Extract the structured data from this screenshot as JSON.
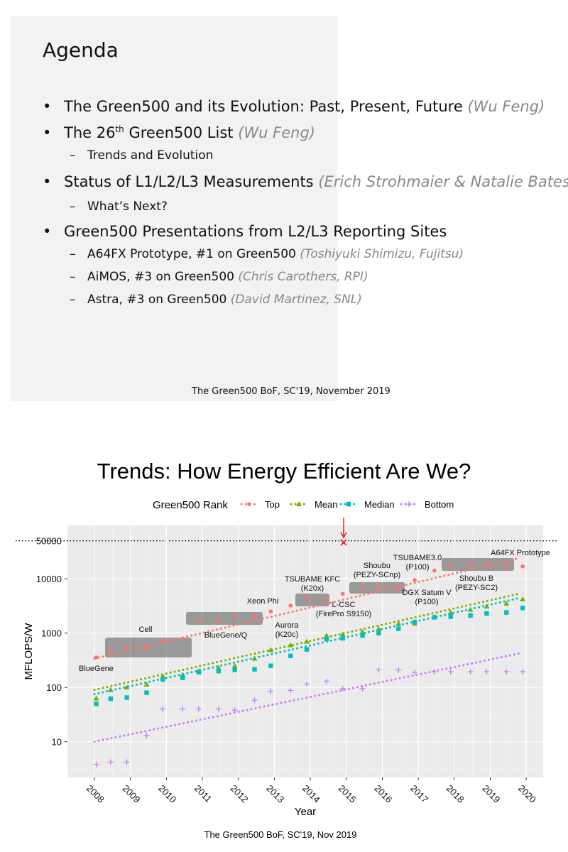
{
  "slide1": {
    "title": "Agenda",
    "items": [
      {
        "text": "The Green500 and its Evolution: Past, Present, Future",
        "note": "(Wu Feng)",
        "level": 1
      },
      {
        "text": "The 26",
        "sup": "th",
        "rest": " Green500 List",
        "note": "(Wu Feng)",
        "level": 1
      },
      {
        "text": "Trends and Evolution",
        "level": 2
      },
      {
        "text": "Status of L1/L2/L3 Measurements",
        "note": "(Erich Strohmaier & Natalie Bates)",
        "level": 1
      },
      {
        "text": "What’s Next?",
        "level": 2
      },
      {
        "text": "Green500 Presentations from L2/L3 Reporting Sites",
        "level": 1
      },
      {
        "text": "A64FX Prototype, #1 on Green500",
        "note": "(Toshiyuki Shimizu, Fujitsu)",
        "level": 2
      },
      {
        "text": "AiMOS, #3 on Green500",
        "note": "(Chris Carothers, RPI)",
        "level": 2
      },
      {
        "text": "Astra, #3 on Green500",
        "note": "(David Martinez, SNL)",
        "level": 2
      }
    ],
    "footer": "The Green500 BoF, SC'19, November 2019"
  },
  "slide2": {
    "title": "Trends:  How Energy Efficient Are We?",
    "footer": "The Green500 BoF, SC'19, Nov 2019"
  },
  "chart_data": {
    "type": "scatter",
    "legend_title": "Green500 Rank",
    "legend": "top",
    "x_label": "Year",
    "y_label": "MFLOPS/W",
    "log_y": true,
    "grid": true,
    "xlim": [
      2007.25,
      2020.47
    ],
    "ylim": [
      2.2,
      96000
    ],
    "xticks": [
      2008,
      2009,
      2010,
      2011,
      2012,
      2013,
      2014,
      2015,
      2016,
      2017,
      2018,
      2019,
      2020
    ],
    "yticks": [
      10,
      100,
      1000,
      10000,
      50000
    ],
    "x": [
      2008.05,
      2008.45,
      2008.9,
      2009.45,
      2009.9,
      2010.45,
      2010.9,
      2011.45,
      2011.9,
      2012.45,
      2012.9,
      2013.45,
      2013.9,
      2014.45,
      2014.9,
      2015.45,
      2015.9,
      2016.45,
      2016.9,
      2017.45,
      2017.9,
      2018.45,
      2018.9,
      2019.45,
      2019.9
    ],
    "series": [
      {
        "name": "Top",
        "color": "#F8766D",
        "shape": "circle",
        "values": [
          357,
          488,
          536,
          536,
          723,
          773,
          1684,
          1684,
          2097,
          2100,
          2499,
          3208,
          4503,
          4390,
          5272,
          7032,
          7032,
          6674,
          9462,
          14110,
          17009,
          18404,
          18404,
          16876,
          16876
        ],
        "trend_x": [
          2008,
          2019.8
        ],
        "trend_values": [
          340,
          24000
        ]
      },
      {
        "name": "Mean",
        "color": "#7CAE00",
        "shape": "triangle",
        "values": [
          63,
          90,
          100,
          113,
          160,
          170,
          200,
          230,
          250,
          340,
          490,
          600,
          700,
          900,
          950,
          1050,
          1200,
          1500,
          1500,
          2000,
          2400,
          2700,
          3100,
          3500,
          4200
        ],
        "trend_x": [
          2008,
          2019.8
        ],
        "trend_values": [
          90,
          5300
        ]
      },
      {
        "name": "Median",
        "color": "#00BFC4",
        "shape": "square",
        "values": [
          50,
          62,
          65,
          80,
          140,
          150,
          190,
          200,
          210,
          215,
          250,
          380,
          500,
          780,
          800,
          900,
          1000,
          1200,
          1600,
          1950,
          2000,
          2100,
          2300,
          2400,
          2900
        ],
        "trend_x": [
          2008,
          2019.8
        ],
        "trend_values": [
          75,
          4400
        ]
      },
      {
        "name": "Bottom",
        "color": "#C77CFF",
        "shape": "plus",
        "values": [
          3.8,
          4.2,
          4.2,
          13,
          40,
          40,
          40,
          40,
          38,
          58,
          85,
          88,
          115,
          130,
          95,
          95,
          210,
          210,
          190,
          195,
          195,
          195,
          195,
          195,
          195
        ],
        "trend_x": [
          2008,
          2019.8
        ],
        "trend_values": [
          10,
          420
        ]
      }
    ],
    "annotations": [
      [
        "BlueGene"
      ],
      [
        "Cell"
      ],
      [
        "BlueGene/Q"
      ],
      [
        "Xeon Phi"
      ],
      [
        "Aurora",
        "(K20c)"
      ],
      [
        "TSUBAME KFC",
        "(K20x)"
      ],
      [
        "L-CSC",
        "(FirePro S9150)"
      ],
      [
        "Shoubu",
        "(PEZY-SCnp)"
      ],
      [
        "DGX Satum V",
        "(P100)"
      ],
      [
        "TSUBAME3.0",
        "(P100)"
      ],
      [
        "Shoubu B",
        "(PEZY-SC2)"
      ],
      [
        "A64FX Prototype"
      ]
    ]
  }
}
